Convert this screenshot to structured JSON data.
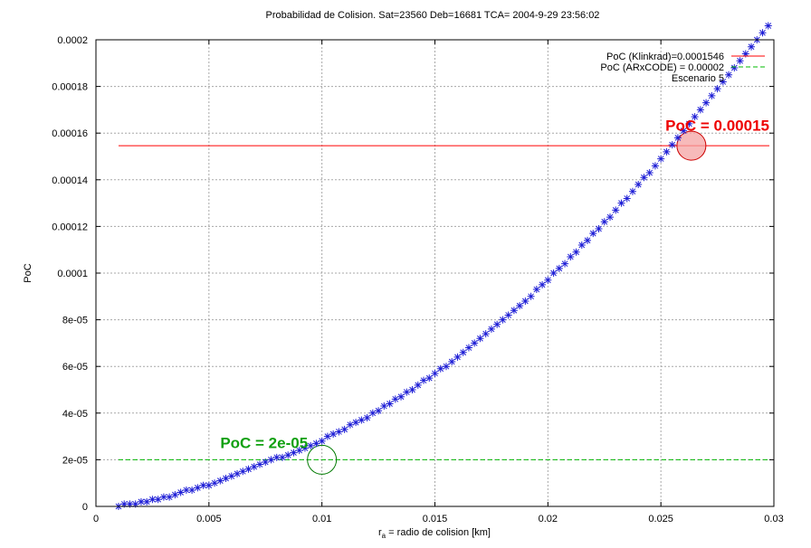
{
  "chart_data": {
    "type": "scatter",
    "title": "Probabilidad de Colision. Sat=23560  Deb=16681 TCA= 2004-9-29 23:56:02",
    "xlabel_main": "r",
    "xlabel_sub": "a",
    "xlabel_rest": " = radio de colision [km]",
    "ylabel": "PoC",
    "xlim": [
      0,
      0.03
    ],
    "ylim": [
      0,
      0.0002
    ],
    "grid": true,
    "legend_position": "top-right",
    "x_ticks": [
      "0",
      "0.005",
      "0.01",
      "0.015",
      "0.02",
      "0.025",
      "0.03"
    ],
    "y_ticks": [
      "0",
      "2e-05",
      "4e-05",
      "6e-05",
      "8e-05",
      "0.0001",
      "0.00012",
      "0.00014",
      "0.00016",
      "0.00018",
      "0.0002"
    ],
    "series": [
      {
        "name": "Escenario 5",
        "marker": "asterisk",
        "color": "#1f1fd6",
        "x": [
          0.001,
          0.00125,
          0.0015,
          0.00175,
          0.002,
          0.00225,
          0.0025,
          0.00275,
          0.003,
          0.00325,
          0.0035,
          0.00375,
          0.004,
          0.00425,
          0.0045,
          0.00475,
          0.005,
          0.00525,
          0.0055,
          0.00575,
          0.006,
          0.00625,
          0.0065,
          0.00675,
          0.007,
          0.00725,
          0.0075,
          0.00775,
          0.008,
          0.00825,
          0.0085,
          0.00875,
          0.009,
          0.00925,
          0.0095,
          0.00975,
          0.01,
          0.01025,
          0.0105,
          0.01075,
          0.011,
          0.01125,
          0.0115,
          0.01175,
          0.012,
          0.01225,
          0.0125,
          0.01275,
          0.013,
          0.01325,
          0.0135,
          0.01375,
          0.014,
          0.01425,
          0.0145,
          0.01475,
          0.015,
          0.01525,
          0.0155,
          0.01575,
          0.016,
          0.01625,
          0.0165,
          0.01675,
          0.017,
          0.01725,
          0.0175,
          0.01775,
          0.018,
          0.01825,
          0.0185,
          0.01875,
          0.019,
          0.01925,
          0.0195,
          0.01975,
          0.02,
          0.02025,
          0.0205,
          0.02075,
          0.021,
          0.02125,
          0.0215,
          0.02175,
          0.022,
          0.02225,
          0.0225,
          0.02275,
          0.023,
          0.02325,
          0.0235,
          0.02375,
          0.024,
          0.02425,
          0.0245,
          0.02475,
          0.025,
          0.02525,
          0.0255,
          0.02575,
          0.026,
          0.02625,
          0.0265,
          0.02675,
          0.027,
          0.02725,
          0.0275,
          0.02775,
          0.028,
          0.02825,
          0.0285,
          0.02875,
          0.029,
          0.02925,
          0.0295,
          0.02975
        ],
        "y": [
          0.0,
          1e-06,
          1e-06,
          1e-06,
          2e-06,
          2e-06,
          3e-06,
          3e-06,
          4e-06,
          4e-06,
          5e-06,
          6e-06,
          7e-06,
          7e-06,
          8e-06,
          9e-06,
          9e-06,
          1e-05,
          1.1e-05,
          1.2e-05,
          1.3e-05,
          1.4e-05,
          1.5e-05,
          1.6e-05,
          1.7e-05,
          1.8e-05,
          1.9e-05,
          2e-05,
          2.1e-05,
          2.1e-05,
          2.2e-05,
          2.3e-05,
          2.4e-05,
          2.5e-05,
          2.6e-05,
          2.7e-05,
          2.8e-05,
          3e-05,
          3.1e-05,
          3.2e-05,
          3.3e-05,
          3.5e-05,
          3.6e-05,
          3.7e-05,
          3.8e-05,
          4e-05,
          4.1e-05,
          4.3e-05,
          4.4e-05,
          4.6e-05,
          4.7e-05,
          4.9e-05,
          5e-05,
          5.2e-05,
          5.4e-05,
          5.5e-05,
          5.7e-05,
          5.9e-05,
          6e-05,
          6.2e-05,
          6.4e-05,
          6.6e-05,
          6.8e-05,
          7e-05,
          7.2e-05,
          7.4e-05,
          7.6e-05,
          7.8e-05,
          8e-05,
          8.2e-05,
          8.4e-05,
          8.6e-05,
          8.8e-05,
          9e-05,
          9.3e-05,
          9.5e-05,
          9.7e-05,
          0.0001,
          0.000102,
          0.000104,
          0.000107,
          0.000109,
          0.000112,
          0.000114,
          0.000117,
          0.000119,
          0.000122,
          0.000124,
          0.000127,
          0.00013,
          0.000132,
          0.000135,
          0.000138,
          0.000141,
          0.000143,
          0.000146,
          0.000149,
          0.000152,
          0.000155,
          0.000158,
          0.000161,
          0.000164,
          0.000167,
          0.00017,
          0.000173,
          0.000176,
          0.000179,
          0.000182,
          0.000185,
          0.000188,
          0.000191,
          0.000194,
          0.000197,
          0.0002,
          0.000203,
          0.000206
        ]
      }
    ],
    "reference_lines": [
      {
        "name": "PoC (Klinkrad)=0.0001546",
        "y": 0.0001546,
        "x_start": 0.001,
        "x_end": 0.0298,
        "color": "#ff0000",
        "style": "solid"
      },
      {
        "name": "PoC (ARxCODE) = 0.00002",
        "y": 2e-05,
        "x_start": 0.001,
        "x_end": 0.0298,
        "color": "#00bb00",
        "style": "dashed"
      }
    ],
    "annotations": [
      {
        "text": "PoC = 0.00015",
        "x": 0.0252,
        "y": 0.000161,
        "color": "#ee0000",
        "circle_x": 0.02635,
        "circle_y": 0.0001546,
        "circle_fill": "#f4a3a3",
        "circle_stroke": "#cc0000"
      },
      {
        "text": "PoC = 2e-05",
        "x": 0.0055,
        "y": 2.5e-05,
        "color": "#10a010",
        "circle_x": 0.01,
        "circle_y": 2e-05,
        "circle_fill": "none",
        "circle_stroke": "#007a00"
      }
    ]
  }
}
